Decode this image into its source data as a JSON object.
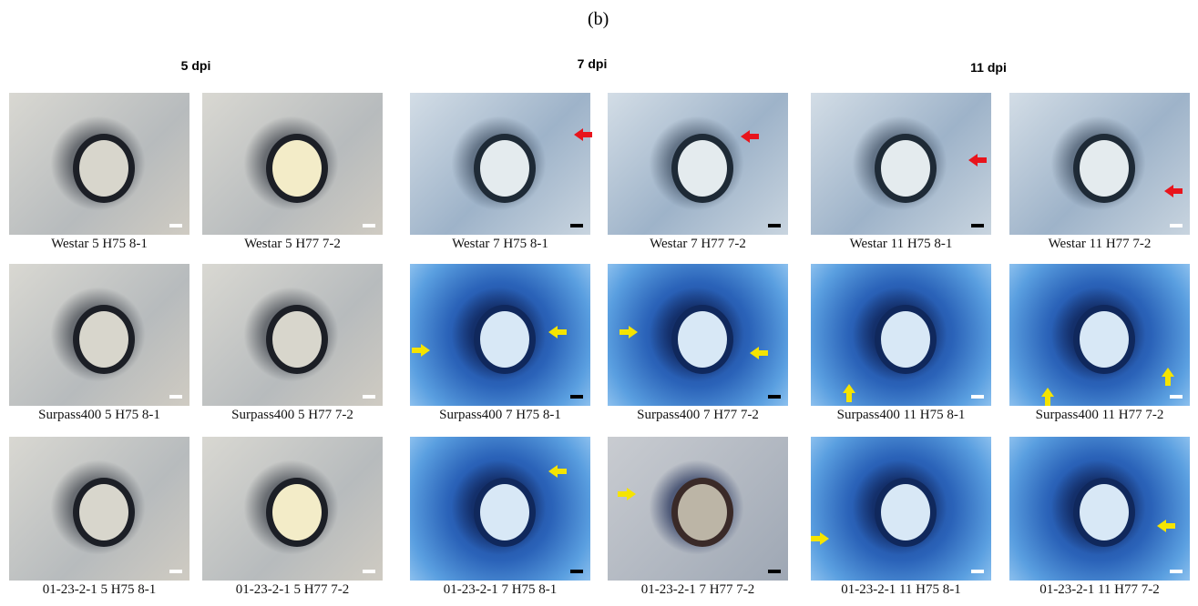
{
  "panel_label": "(b)",
  "columns": [
    "5 dpi",
    "7 dpi",
    "11 dpi"
  ],
  "panels": [
    [
      "Westar 5 H75 8-1",
      "Westar 5 H77 7-2",
      "Westar 7 H75 8-1",
      "Westar 7 H77 7-2",
      "Westar 11 H75 8-1",
      "Westar 11 H77 7-2"
    ],
    [
      "Surpass400 5 H75 8-1",
      "Surpass400 5 H77 7-2",
      "Surpass400 7 H75 8-1",
      "Surpass400 7 H77 7-2",
      "Surpass400 11 H75 8-1",
      "Surpass400 11 H77 7-2"
    ],
    [
      "01-23-2-1 5 H75 8-1",
      "01-23-2-1 5 H77 7-2",
      "01-23-2-1 7 H75 8-1",
      "01-23-2-1 7 H77 7-2",
      "01-23-2-1 11 H75 8-1",
      "01-23-2-1 11 H77 7-2"
    ]
  ]
}
